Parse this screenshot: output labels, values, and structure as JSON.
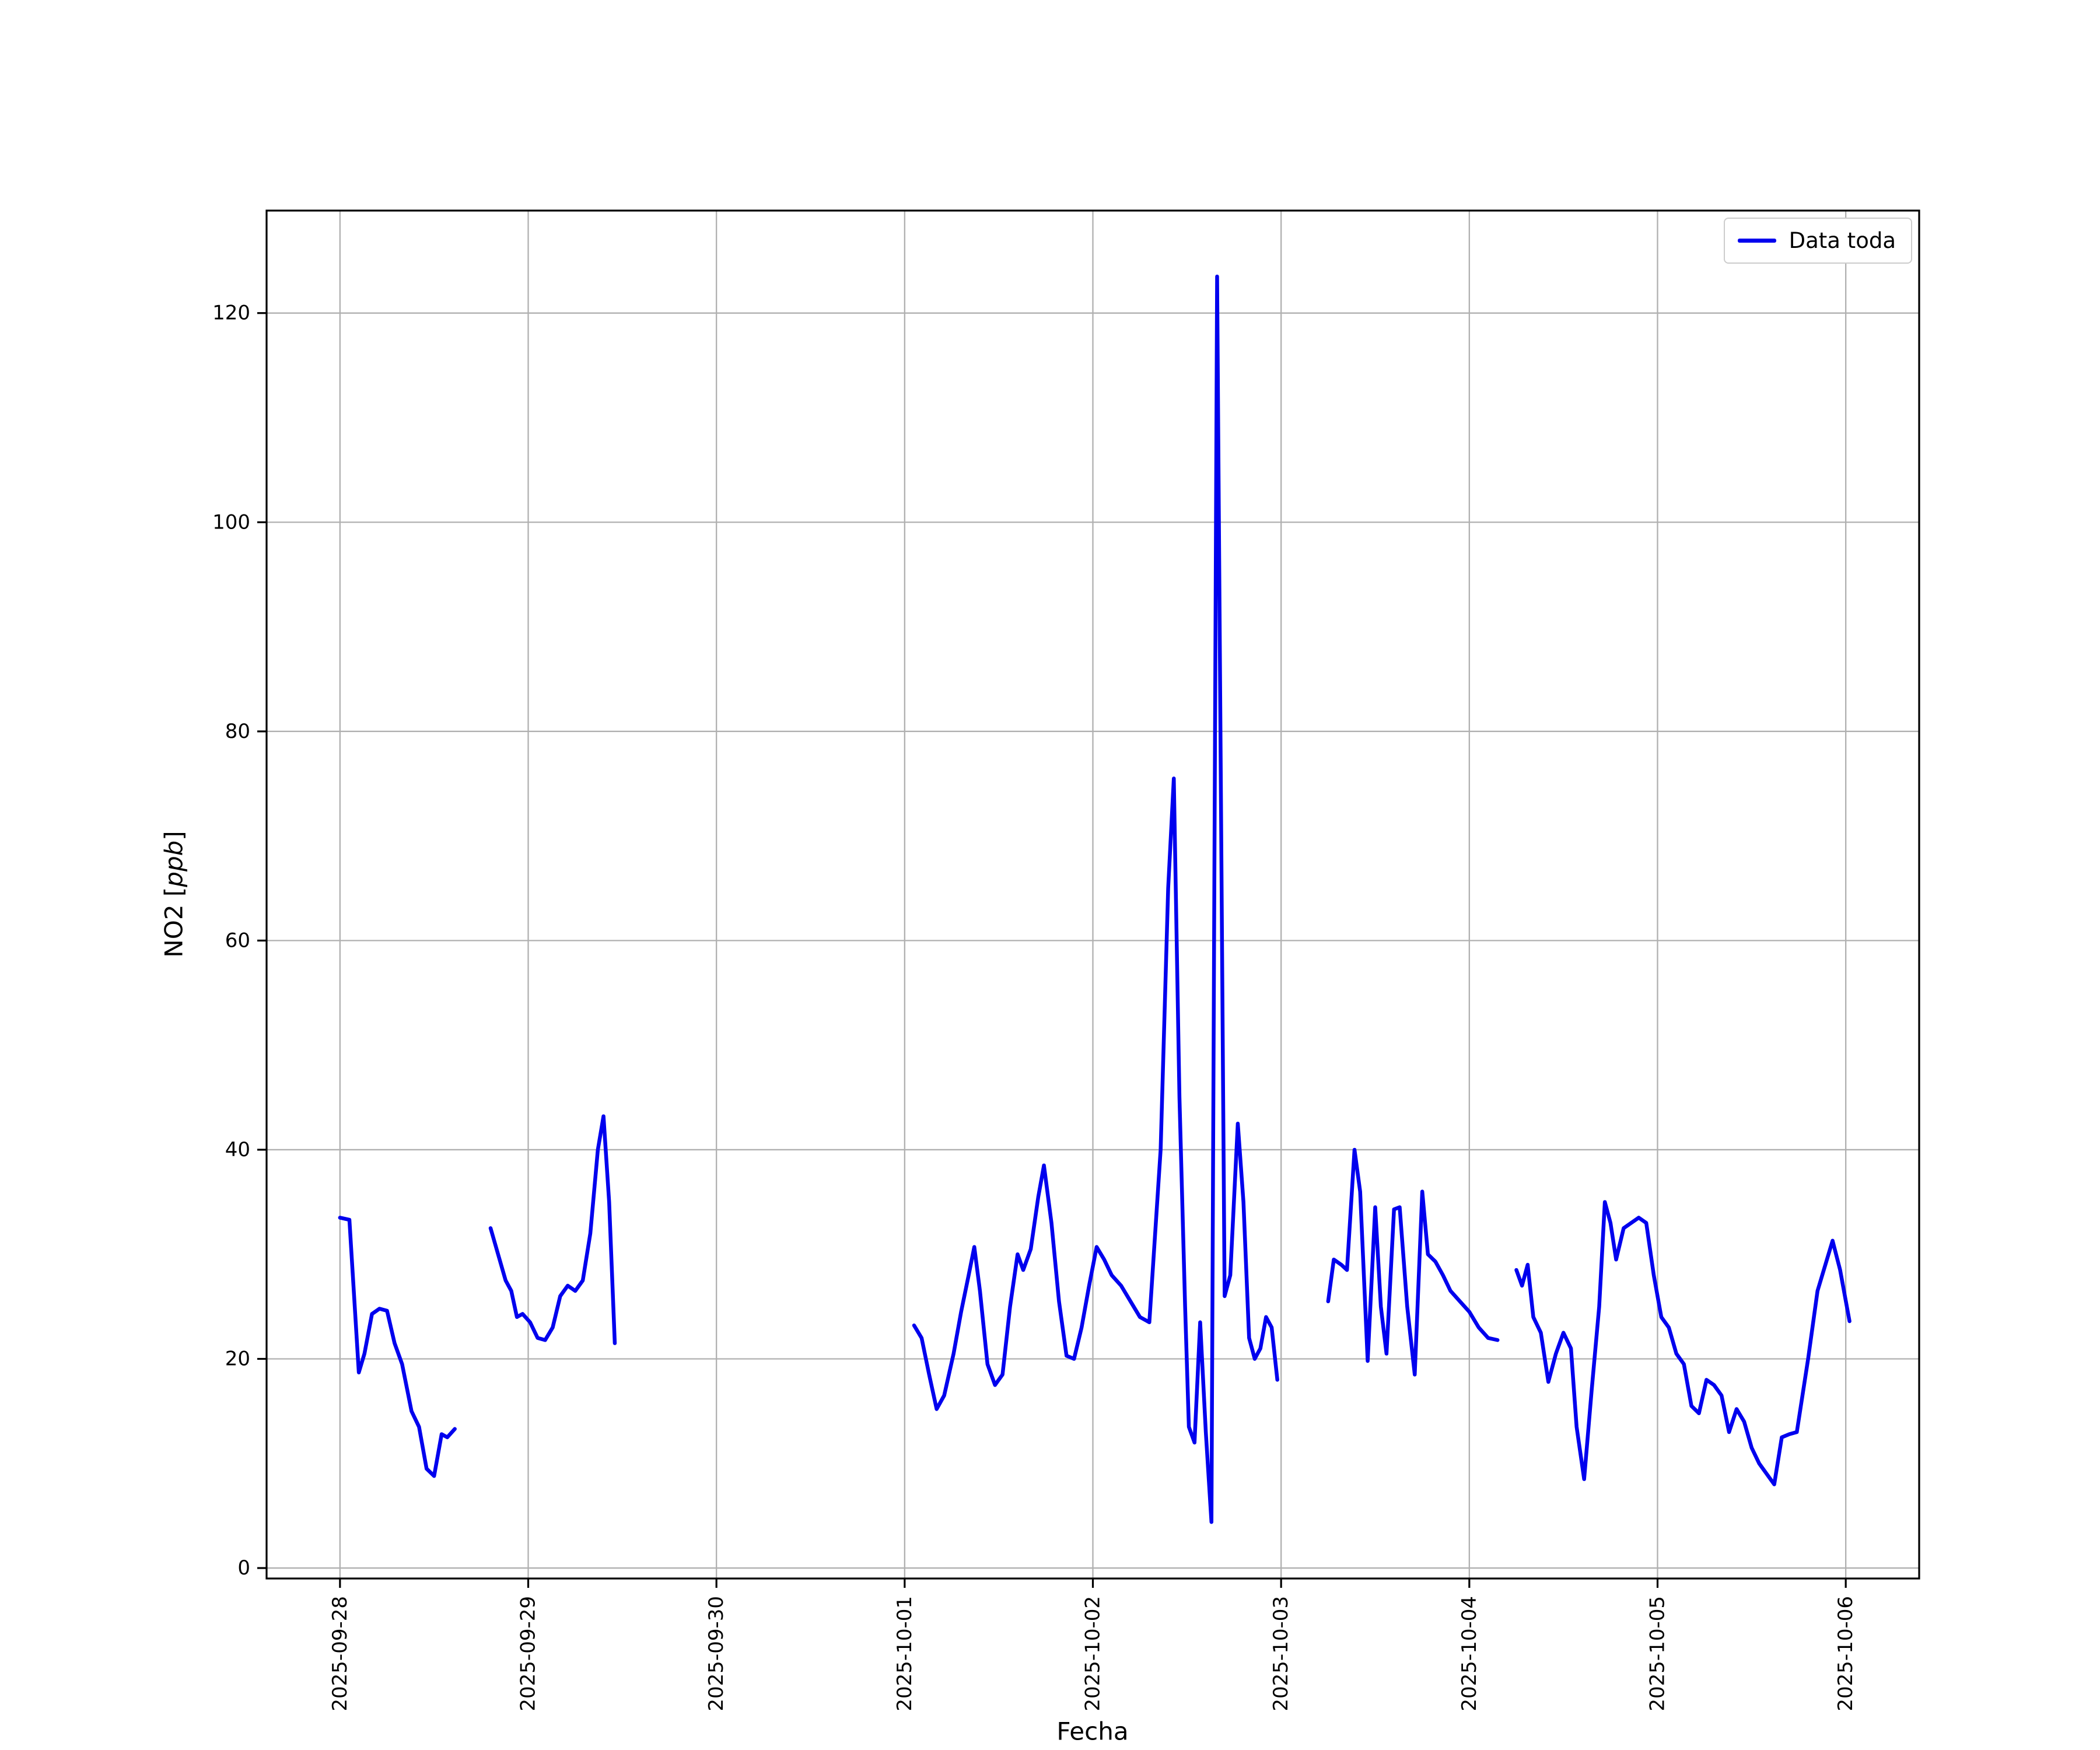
{
  "window": {
    "background": "#ffffff"
  },
  "chart_data": {
    "type": "line",
    "title": "",
    "xlabel": "Fecha",
    "ylabel_text": "NO2 [ppb]",
    "ylabel_parts": {
      "prefix": "NO2 [",
      "italic": "ppb",
      "suffix": "]"
    },
    "legend": {
      "label": "Data toda",
      "position": "upper right"
    },
    "grid": true,
    "line_color": "#0000ee",
    "grid_color": "#b0b0b0",
    "frame_color": "#000000",
    "x_unit": "days since 2025-09-28 00:00",
    "x_tick_labels": [
      "2025-09-28",
      "2025-09-29",
      "2025-09-30",
      "2025-10-01",
      "2025-10-02",
      "2025-10-03",
      "2025-10-04",
      "2025-10-05",
      "2025-10-06"
    ],
    "x_ticks_days": [
      0,
      1,
      2,
      3,
      4,
      5,
      6,
      7,
      8
    ],
    "y_ticks": [
      0,
      20,
      40,
      60,
      80,
      100,
      120
    ],
    "xlim_days": [
      -0.39,
      8.39
    ],
    "ylim": [
      -1,
      129.8
    ],
    "series": [
      {
        "name": "Data toda",
        "segments": [
          [
            [
              0.0,
              33.5
            ],
            [
              0.05,
              33.3
            ],
            [
              0.1,
              18.7
            ],
            [
              0.13,
              20.5
            ],
            [
              0.17,
              24.3
            ],
            [
              0.21,
              24.8
            ],
            [
              0.25,
              24.6
            ],
            [
              0.29,
              21.5
            ],
            [
              0.33,
              19.5
            ],
            [
              0.38,
              15.0
            ],
            [
              0.42,
              13.5
            ],
            [
              0.46,
              9.5
            ],
            [
              0.5,
              8.8
            ],
            [
              0.54,
              12.8
            ],
            [
              0.57,
              12.5
            ],
            [
              0.61,
              13.3
            ]
          ],
          [
            [
              0.8,
              32.5
            ],
            [
              0.84,
              30.0
            ],
            [
              0.88,
              27.5
            ],
            [
              0.91,
              26.5
            ],
            [
              0.94,
              24.0
            ],
            [
              0.97,
              24.3
            ],
            [
              1.01,
              23.5
            ],
            [
              1.05,
              22.0
            ],
            [
              1.09,
              21.8
            ],
            [
              1.13,
              23.0
            ],
            [
              1.17,
              26.0
            ],
            [
              1.21,
              27.0
            ],
            [
              1.25,
              26.5
            ],
            [
              1.29,
              27.5
            ],
            [
              1.33,
              32.0
            ],
            [
              1.37,
              40.0
            ],
            [
              1.4,
              43.2
            ],
            [
              1.43,
              35.0
            ],
            [
              1.46,
              21.5
            ]
          ],
          [
            [
              3.05,
              23.2
            ],
            [
              3.09,
              22.0
            ],
            [
              3.13,
              18.5
            ],
            [
              3.17,
              15.2
            ],
            [
              3.21,
              16.5
            ],
            [
              3.26,
              20.5
            ],
            [
              3.3,
              24.5
            ],
            [
              3.34,
              28.0
            ],
            [
              3.37,
              30.7
            ],
            [
              3.4,
              26.5
            ],
            [
              3.44,
              19.5
            ],
            [
              3.48,
              17.5
            ],
            [
              3.52,
              18.5
            ],
            [
              3.56,
              25.0
            ],
            [
              3.6,
              30.0
            ],
            [
              3.63,
              28.5
            ],
            [
              3.67,
              30.5
            ],
            [
              3.71,
              35.5
            ],
            [
              3.74,
              38.5
            ],
            [
              3.78,
              33.0
            ],
            [
              3.82,
              25.5
            ],
            [
              3.86,
              20.3
            ],
            [
              3.9,
              20.0
            ],
            [
              3.94,
              23.0
            ],
            [
              3.98,
              27.0
            ],
            [
              4.02,
              30.7
            ],
            [
              4.06,
              29.5
            ],
            [
              4.1,
              28.0
            ],
            [
              4.15,
              27.0
            ],
            [
              4.2,
              25.5
            ],
            [
              4.25,
              24.0
            ],
            [
              4.3,
              23.5
            ],
            [
              4.36,
              40.0
            ],
            [
              4.4,
              65.0
            ],
            [
              4.43,
              75.5
            ],
            [
              4.46,
              45.0
            ],
            [
              4.49,
              25.0
            ],
            [
              4.51,
              13.5
            ],
            [
              4.54,
              12.0
            ],
            [
              4.57,
              23.5
            ],
            [
              4.6,
              13.0
            ],
            [
              4.63,
              4.4
            ],
            [
              4.66,
              123.5
            ],
            [
              4.7,
              26.0
            ],
            [
              4.73,
              28.0
            ],
            [
              4.77,
              42.5
            ],
            [
              4.8,
              35.0
            ],
            [
              4.83,
              22.0
            ],
            [
              4.86,
              20.0
            ],
            [
              4.89,
              21.0
            ],
            [
              4.92,
              24.0
            ],
            [
              4.95,
              23.0
            ],
            [
              4.98,
              18.0
            ]
          ],
          [
            [
              5.25,
              25.5
            ],
            [
              5.28,
              29.5
            ],
            [
              5.32,
              29.0
            ],
            [
              5.35,
              28.5
            ],
            [
              5.39,
              40.0
            ],
            [
              5.42,
              36.0
            ],
            [
              5.46,
              19.8
            ],
            [
              5.5,
              34.5
            ],
            [
              5.53,
              25.0
            ],
            [
              5.56,
              20.5
            ],
            [
              5.6,
              34.3
            ],
            [
              5.63,
              34.5
            ],
            [
              5.67,
              25.0
            ],
            [
              5.71,
              18.5
            ],
            [
              5.75,
              36.0
            ],
            [
              5.78,
              30.0
            ],
            [
              5.82,
              29.3
            ],
            [
              5.86,
              28.0
            ],
            [
              5.9,
              26.5
            ],
            [
              5.95,
              25.5
            ],
            [
              6.0,
              24.5
            ],
            [
              6.05,
              23.0
            ],
            [
              6.1,
              22.0
            ],
            [
              6.15,
              21.8
            ]
          ],
          [
            [
              6.25,
              28.5
            ],
            [
              6.28,
              27.0
            ],
            [
              6.31,
              29.0
            ],
            [
              6.34,
              24.0
            ],
            [
              6.38,
              22.5
            ],
            [
              6.42,
              17.8
            ],
            [
              6.46,
              20.5
            ],
            [
              6.5,
              22.5
            ],
            [
              6.54,
              21.0
            ],
            [
              6.57,
              13.5
            ],
            [
              6.61,
              8.5
            ],
            [
              6.65,
              17.0
            ],
            [
              6.69,
              25.0
            ],
            [
              6.72,
              35.0
            ],
            [
              6.75,
              33.0
            ],
            [
              6.78,
              29.5
            ],
            [
              6.82,
              32.5
            ],
            [
              6.86,
              33.0
            ],
            [
              6.9,
              33.5
            ],
            [
              6.94,
              33.0
            ],
            [
              6.98,
              28.0
            ],
            [
              7.02,
              24.0
            ],
            [
              7.06,
              23.0
            ],
            [
              7.1,
              20.5
            ],
            [
              7.14,
              19.5
            ],
            [
              7.18,
              15.5
            ],
            [
              7.22,
              14.8
            ],
            [
              7.26,
              18.0
            ],
            [
              7.3,
              17.5
            ],
            [
              7.34,
              16.5
            ],
            [
              7.38,
              13.0
            ],
            [
              7.42,
              15.2
            ],
            [
              7.46,
              14.0
            ],
            [
              7.5,
              11.5
            ],
            [
              7.54,
              10.0
            ],
            [
              7.58,
              9.0
            ],
            [
              7.62,
              8.0
            ],
            [
              7.66,
              12.5
            ],
            [
              7.7,
              12.8
            ],
            [
              7.74,
              13.0
            ],
            [
              7.8,
              20.0
            ],
            [
              7.85,
              26.5
            ],
            [
              7.9,
              29.5
            ],
            [
              7.93,
              31.3
            ],
            [
              7.97,
              28.5
            ],
            [
              8.02,
              23.6
            ]
          ]
        ]
      }
    ]
  }
}
